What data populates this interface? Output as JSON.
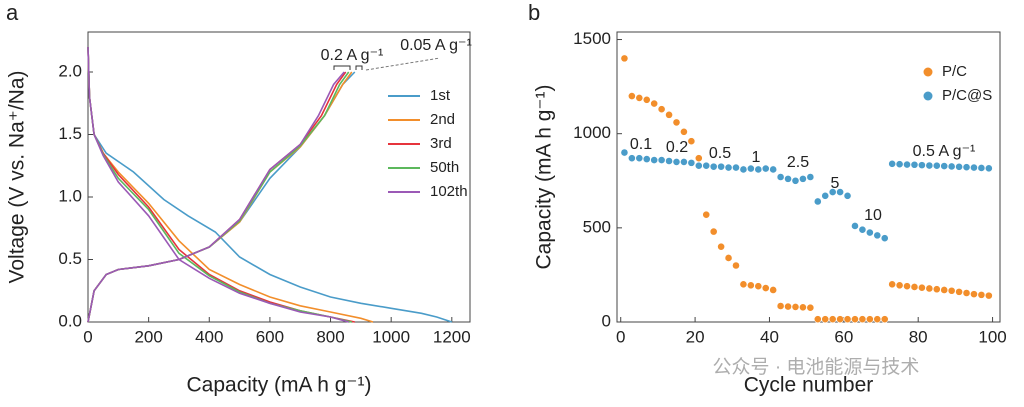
{
  "chart_data": [
    {
      "type": "line",
      "panel_label": "a",
      "xlabel": "Capacity (mA h g⁻¹)",
      "ylabel": "Voltage (V vs. Na⁺/Na)",
      "xlim": [
        0,
        1260
      ],
      "ylim": [
        0,
        2.32
      ],
      "xticks": [
        0,
        200,
        400,
        600,
        800,
        1000,
        1200
      ],
      "yticks": [
        {
          "value": 0,
          "label": "0.0"
        },
        0.5,
        {
          "value": 1,
          "label": "1.0"
        },
        1.5,
        {
          "value": 2,
          "label": "2.0"
        }
      ],
      "legend": "upper right",
      "annotations": [
        "0.2 A g⁻¹",
        "0.05 A g⁻¹"
      ],
      "series": [
        {
          "name": "1st",
          "color": "#4a9cc9",
          "x": [
            0,
            5,
            20,
            60,
            150,
            250,
            330,
            420,
            500,
            600,
            700,
            800,
            900,
            1000,
            1100,
            1150,
            1200,
            null,
            0,
            20,
            60,
            100,
            200,
            300,
            400,
            500,
            600,
            700,
            780,
            840,
            880
          ],
          "values": [
            2.2,
            1.8,
            1.5,
            1.35,
            1.2,
            0.98,
            0.85,
            0.72,
            0.52,
            0.38,
            0.28,
            0.2,
            0.15,
            0.11,
            0.07,
            0.04,
            0,
            null,
            0,
            0.25,
            0.38,
            0.42,
            0.45,
            0.5,
            0.6,
            0.8,
            1.15,
            1.4,
            1.65,
            1.9,
            2.0
          ]
        },
        {
          "name": "2nd",
          "color": "#f28e2b",
          "x": [
            0,
            5,
            20,
            50,
            100,
            200,
            300,
            400,
            500,
            600,
            700,
            800,
            900,
            940,
            null,
            0,
            20,
            60,
            100,
            200,
            300,
            400,
            500,
            600,
            700,
            780,
            840,
            870
          ],
          "values": [
            2.2,
            1.8,
            1.5,
            1.35,
            1.2,
            0.95,
            0.65,
            0.42,
            0.3,
            0.2,
            0.13,
            0.08,
            0.03,
            0,
            null,
            0,
            0.25,
            0.38,
            0.42,
            0.45,
            0.5,
            0.6,
            0.8,
            1.2,
            1.4,
            1.65,
            1.9,
            2.0
          ]
        },
        {
          "name": "3rd",
          "color": "#e6343c",
          "x": [
            0,
            5,
            20,
            50,
            100,
            200,
            300,
            400,
            500,
            600,
            700,
            800,
            880,
            null,
            0,
            20,
            60,
            100,
            200,
            300,
            400,
            500,
            600,
            700,
            770,
            820,
            850
          ],
          "values": [
            2.2,
            1.8,
            1.5,
            1.35,
            1.18,
            0.92,
            0.58,
            0.38,
            0.25,
            0.16,
            0.09,
            0.04,
            0,
            null,
            0,
            0.25,
            0.38,
            0.42,
            0.45,
            0.5,
            0.6,
            0.82,
            1.22,
            1.42,
            1.65,
            1.9,
            2.0
          ]
        },
        {
          "name": "50th",
          "color": "#5cb85c",
          "x": [
            0,
            5,
            20,
            50,
            100,
            200,
            300,
            400,
            500,
            600,
            700,
            800,
            870,
            null,
            0,
            20,
            60,
            100,
            200,
            300,
            400,
            500,
            600,
            700,
            780,
            830,
            860
          ],
          "values": [
            2.2,
            1.8,
            1.5,
            1.34,
            1.15,
            0.9,
            0.55,
            0.37,
            0.24,
            0.15,
            0.09,
            0.04,
            0,
            null,
            0,
            0.25,
            0.38,
            0.42,
            0.45,
            0.5,
            0.6,
            0.81,
            1.2,
            1.41,
            1.65,
            1.9,
            2.0
          ]
        },
        {
          "name": "102th",
          "color": "#9b59b6",
          "x": [
            0,
            5,
            20,
            50,
            100,
            200,
            300,
            400,
            500,
            600,
            700,
            800,
            860,
            null,
            0,
            20,
            60,
            100,
            200,
            300,
            400,
            500,
            600,
            700,
            760,
            810,
            845
          ],
          "values": [
            2.2,
            1.8,
            1.5,
            1.33,
            1.12,
            0.85,
            0.5,
            0.35,
            0.23,
            0.15,
            0.08,
            0.04,
            0,
            null,
            0,
            0.25,
            0.38,
            0.42,
            0.45,
            0.5,
            0.6,
            0.82,
            1.22,
            1.42,
            1.65,
            1.9,
            2.0
          ]
        }
      ]
    },
    {
      "type": "scatter",
      "panel_label": "b",
      "xlabel": "Cycle number",
      "ylabel": "Capacity (mA h g⁻¹)",
      "xlim": [
        -1,
        102
      ],
      "ylim": [
        0,
        1540
      ],
      "xticks": [
        0,
        20,
        40,
        60,
        80,
        100
      ],
      "yticks": [
        0,
        500,
        1000,
        1500
      ],
      "legend": "upper right",
      "annotations": [
        "0.1",
        "0.2",
        "0.5",
        "1",
        "2.5",
        "5",
        "10",
        "0.5 A g⁻¹"
      ],
      "watermark": "公众号 · 电池能源与技术",
      "x": [
        1,
        3,
        5,
        7,
        9,
        11,
        13,
        15,
        17,
        19,
        21,
        23,
        25,
        27,
        29,
        31,
        33,
        35,
        37,
        39,
        41,
        43,
        45,
        47,
        49,
        51,
        53,
        55,
        57,
        59,
        61,
        63,
        65,
        67,
        69,
        71,
        73,
        75,
        77,
        79,
        81,
        83,
        85,
        87,
        89,
        91,
        93,
        95,
        97,
        99
      ],
      "series": [
        {
          "name": "P/C",
          "color": "#f28e2b",
          "values": [
            1400,
            1200,
            1190,
            1180,
            1160,
            1130,
            1100,
            1060,
            1010,
            960,
            870,
            570,
            480,
            400,
            340,
            300,
            200,
            195,
            190,
            180,
            170,
            85,
            82,
            80,
            78,
            76,
            15,
            15,
            15,
            15,
            15,
            15,
            15,
            15,
            15,
            15,
            200,
            195,
            190,
            186,
            182,
            178,
            174,
            170,
            166,
            160,
            154,
            148,
            144,
            140
          ]
        },
        {
          "name": "P/C@S",
          "color": "#4a9cc9",
          "values": [
            900,
            870,
            870,
            865,
            860,
            860,
            855,
            850,
            850,
            845,
            830,
            830,
            825,
            825,
            820,
            820,
            810,
            815,
            810,
            815,
            810,
            770,
            760,
            750,
            760,
            770,
            640,
            670,
            690,
            690,
            670,
            510,
            490,
            475,
            460,
            445,
            840,
            838,
            836,
            835,
            833,
            831,
            830,
            828,
            826,
            824,
            822,
            820,
            818,
            816
          ]
        }
      ]
    }
  ]
}
